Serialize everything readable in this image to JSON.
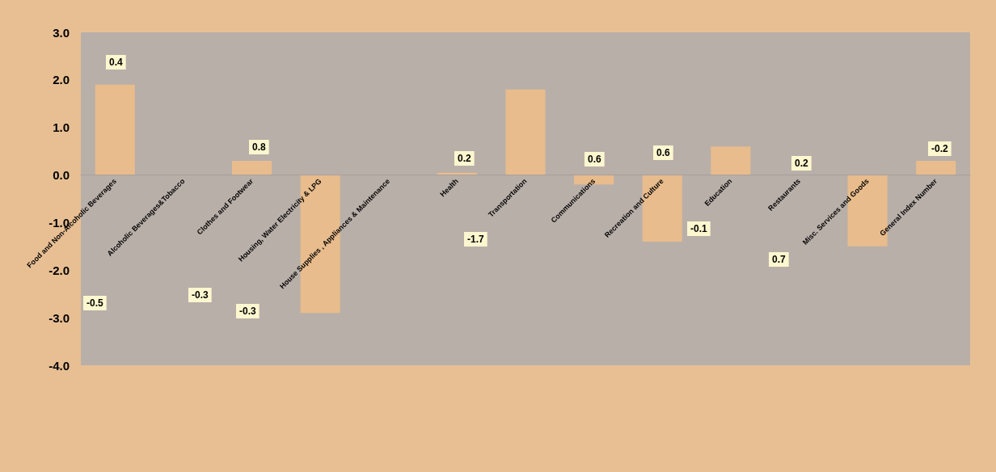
{
  "chart_data": {
    "type": "bar",
    "categories": [
      "Food and Non-Alcoholic Beverages",
      "Alcoholic Beverages&Tobacco",
      "Clothes and Footwear",
      "Housing, Water Electricity & LPG",
      "House Supplies , Appliances & Maintenance",
      "Health",
      "Transportation",
      "Communications",
      "Recreation and Culture",
      "Education",
      "Restaurants",
      "Misc. Services and Goods",
      "General Index Number"
    ],
    "values": [
      1.9,
      0,
      0.3,
      -2.9,
      0,
      0.05,
      1.8,
      -0.2,
      -1.4,
      0.6,
      0,
      -1.5,
      0.3
    ],
    "color": "#e8bc8c",
    "ylim": [
      -4,
      3
    ],
    "yticks": [
      {
        "value": -4,
        "label": "-4.0"
      },
      {
        "value": -3,
        "label": "-3.0"
      },
      {
        "value": -2,
        "label": "-2.0"
      },
      {
        "value": -1,
        "label": "-1.0"
      },
      {
        "value": 0,
        "label": "0.0"
      },
      {
        "value": 1,
        "label": "1.0"
      },
      {
        "value": 2,
        "label": "2.0"
      },
      {
        "value": 3,
        "label": "3.0"
      }
    ],
    "annotations": [
      "0.4",
      "-0.5",
      "-0.3",
      "-0.3",
      "0.8",
      "0.2",
      "-1.7",
      "0.6",
      "0.6",
      "-0.1",
      "0.2",
      "0.7",
      "-0.2"
    ]
  }
}
